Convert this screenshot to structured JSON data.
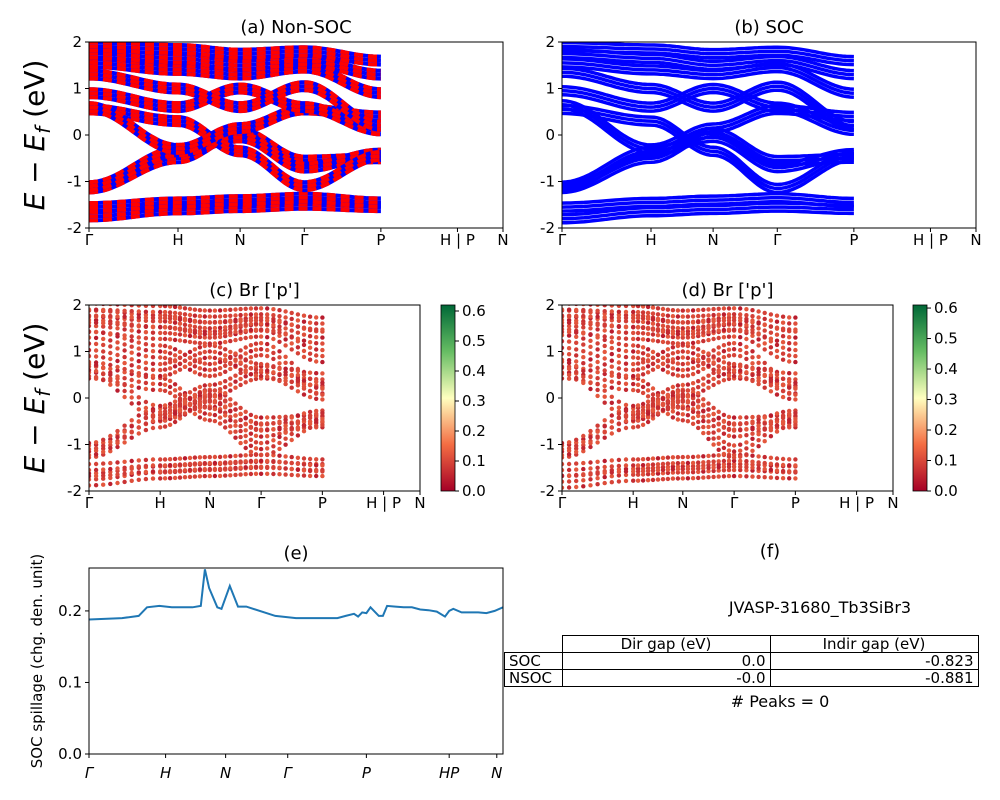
{
  "chart_data": [
    {
      "id": "a",
      "type": "line",
      "title": "(a) Non-SOC",
      "ylabel": "E − E_f (eV)",
      "ylim": [
        -2,
        2
      ],
      "yticks": [
        "2",
        "1",
        "0",
        "-1",
        "-2"
      ],
      "kpath": [
        "Γ",
        "H",
        "N",
        "Γ",
        "P",
        "H | P",
        "N"
      ],
      "series": [
        {
          "color": "#ff0000"
        },
        {
          "color": "#0000ff"
        }
      ],
      "bands": [
        [
          -1.75,
          -1.6,
          -1.55,
          -1.5,
          -1.55
        ],
        [
          -1.55,
          -1.45,
          -1.4,
          -1.35,
          -1.45
        ],
        [
          -1.15,
          -0.5,
          0.05,
          -0.55,
          -0.5
        ],
        [
          -1.1,
          -0.35,
          -0.05,
          -0.7,
          -0.4
        ],
        [
          0.55,
          0.3,
          -0.35,
          -1.1,
          -0.45
        ],
        [
          0.6,
          -0.3,
          0.15,
          0.55,
          0.4
        ],
        [
          0.9,
          0.6,
          1.0,
          0.6,
          0.1
        ],
        [
          1.3,
          1.0,
          0.6,
          1.05,
          0.2
        ],
        [
          1.55,
          1.4,
          1.3,
          1.45,
          0.9
        ],
        [
          1.75,
          1.65,
          1.5,
          1.6,
          1.3
        ],
        [
          1.9,
          1.85,
          1.75,
          1.8,
          1.6
        ]
      ]
    },
    {
      "id": "b",
      "type": "line",
      "title": "(b) SOC",
      "ylim": [
        -2,
        2
      ],
      "yticks": [
        "2",
        "1",
        "0",
        "-1",
        "-2"
      ],
      "kpath": [
        "Γ",
        "H",
        "N",
        "Γ",
        "P",
        "H | P",
        "N"
      ],
      "series": [
        {
          "color": "#0000ff"
        }
      ],
      "bands": [
        [
          -1.8,
          -1.65,
          -1.6,
          -1.55,
          -1.6
        ],
        [
          -1.55,
          -1.45,
          -1.4,
          -1.35,
          -1.45
        ],
        [
          -1.15,
          -0.5,
          0.05,
          -0.55,
          -0.5
        ],
        [
          -1.1,
          -0.35,
          -0.05,
          -0.7,
          -0.4
        ],
        [
          0.55,
          0.3,
          -0.35,
          -1.15,
          -0.45
        ],
        [
          0.65,
          -0.3,
          0.15,
          0.55,
          0.4
        ],
        [
          0.95,
          0.6,
          1.0,
          0.6,
          0.1
        ],
        [
          1.35,
          1.0,
          0.6,
          1.05,
          0.2
        ],
        [
          1.55,
          1.4,
          1.3,
          1.45,
          0.9
        ],
        [
          1.75,
          1.65,
          1.5,
          1.6,
          1.3
        ],
        [
          1.9,
          1.85,
          1.75,
          1.8,
          1.6
        ]
      ]
    },
    {
      "id": "c",
      "type": "scatter",
      "title": "(c)  Br ['p']",
      "ylabel": "E − E_f (eV)",
      "ylim": [
        -2,
        2
      ],
      "yticks": [
        "2",
        "1",
        "0",
        "-1",
        "-2"
      ],
      "kpath": [
        "Γ",
        "H",
        "N",
        "Γ",
        "P",
        "H | P",
        "N"
      ],
      "colorbar": {
        "min": 0.0,
        "max": 0.62,
        "ticks": [
          "0.6",
          "0.5",
          "0.4",
          "0.3",
          "0.2",
          "0.1",
          "0.0"
        ]
      },
      "bands": [
        [
          -1.75,
          -1.6,
          -1.55,
          -1.5,
          -1.55
        ],
        [
          -1.55,
          -1.45,
          -1.4,
          -1.35,
          -1.45
        ],
        [
          -1.15,
          -0.5,
          0.05,
          -0.55,
          -0.5
        ],
        [
          -1.1,
          -0.35,
          -0.05,
          -0.7,
          -0.4
        ],
        [
          0.55,
          0.3,
          -0.35,
          -1.1,
          -0.45
        ],
        [
          0.6,
          -0.3,
          0.15,
          0.55,
          0.4
        ],
        [
          0.9,
          0.6,
          1.0,
          0.6,
          0.1
        ],
        [
          1.3,
          1.0,
          0.6,
          1.05,
          0.2
        ],
        [
          1.55,
          1.4,
          1.3,
          1.45,
          0.9
        ],
        [
          1.75,
          1.65,
          1.5,
          1.6,
          1.3
        ],
        [
          1.9,
          1.85,
          1.75,
          1.8,
          1.6
        ]
      ]
    },
    {
      "id": "d",
      "type": "scatter",
      "title": "(d) Br ['p']",
      "ylim": [
        -2,
        2
      ],
      "yticks": [
        "2",
        "1",
        "0",
        "-1",
        "-2"
      ],
      "kpath": [
        "Γ",
        "H",
        "N",
        "Γ",
        "P",
        "H | P",
        "N"
      ],
      "colorbar": {
        "min": 0.0,
        "max": 0.61,
        "ticks": [
          "0.6",
          "0.5",
          "0.4",
          "0.3",
          "0.2",
          "0.1",
          "0.0"
        ]
      },
      "bands": [
        [
          -1.8,
          -1.65,
          -1.6,
          -1.55,
          -1.6
        ],
        [
          -1.55,
          -1.45,
          -1.4,
          -1.35,
          -1.45
        ],
        [
          -1.15,
          -0.5,
          0.05,
          -0.55,
          -0.5
        ],
        [
          -1.1,
          -0.35,
          -0.05,
          -0.7,
          -0.4
        ],
        [
          0.55,
          0.3,
          -0.35,
          -1.15,
          -0.45
        ],
        [
          0.65,
          -0.3,
          0.15,
          0.55,
          0.4
        ],
        [
          0.95,
          0.6,
          1.0,
          0.6,
          0.1
        ],
        [
          1.35,
          1.0,
          0.6,
          1.05,
          0.2
        ],
        [
          1.55,
          1.4,
          1.3,
          1.45,
          0.9
        ],
        [
          1.75,
          1.65,
          1.5,
          1.6,
          1.3
        ],
        [
          1.9,
          1.85,
          1.75,
          1.8,
          1.6
        ]
      ]
    },
    {
      "id": "e",
      "type": "line",
      "title": "(e)",
      "ylabel": "SOC spillage (chg. den. unit)",
      "ylim": [
        0.0,
        0.26
      ],
      "yticks": [
        "0.2",
        "0.1",
        "0.0"
      ],
      "kpath": [
        "Γ",
        "H",
        "N",
        "Γ",
        "P",
        "HP",
        "N"
      ],
      "series": [
        {
          "color": "#1f77b4",
          "x": [
            0,
            0.08,
            0.12,
            0.14,
            0.17,
            0.2,
            0.25,
            0.27,
            0.28,
            0.29,
            0.31,
            0.32,
            0.34,
            0.36,
            0.38,
            0.45,
            0.5,
            0.6,
            0.62,
            0.64,
            0.65,
            0.66,
            0.67,
            0.68,
            0.7,
            0.71,
            0.72,
            0.74,
            0.76,
            0.78,
            0.8,
            0.82,
            0.84,
            0.86,
            0.87,
            0.88,
            0.9,
            0.92,
            0.94,
            0.96,
            0.98,
            1.0
          ],
          "y": [
            0.188,
            0.19,
            0.193,
            0.205,
            0.207,
            0.205,
            0.205,
            0.207,
            0.258,
            0.232,
            0.205,
            0.203,
            0.235,
            0.206,
            0.206,
            0.193,
            0.19,
            0.19,
            0.193,
            0.196,
            0.192,
            0.198,
            0.197,
            0.205,
            0.193,
            0.193,
            0.207,
            0.206,
            0.205,
            0.205,
            0.202,
            0.201,
            0.199,
            0.192,
            0.2,
            0.203,
            0.198,
            0.198,
            0.198,
            0.197,
            0.2,
            0.205
          ]
        }
      ]
    }
  ],
  "panel_f": {
    "title": "(f)",
    "material": "JVASP-31680_Tb3SiBr3",
    "columns": [
      "Dir gap (eV)",
      "Indir gap (eV)"
    ],
    "rows": [
      {
        "label": "SOC",
        "dir": "0.0",
        "indir": "-0.823"
      },
      {
        "label": "NSOC",
        "dir": "-0.0",
        "indir": "-0.881"
      }
    ],
    "peaks": "# Peaks = 0"
  }
}
